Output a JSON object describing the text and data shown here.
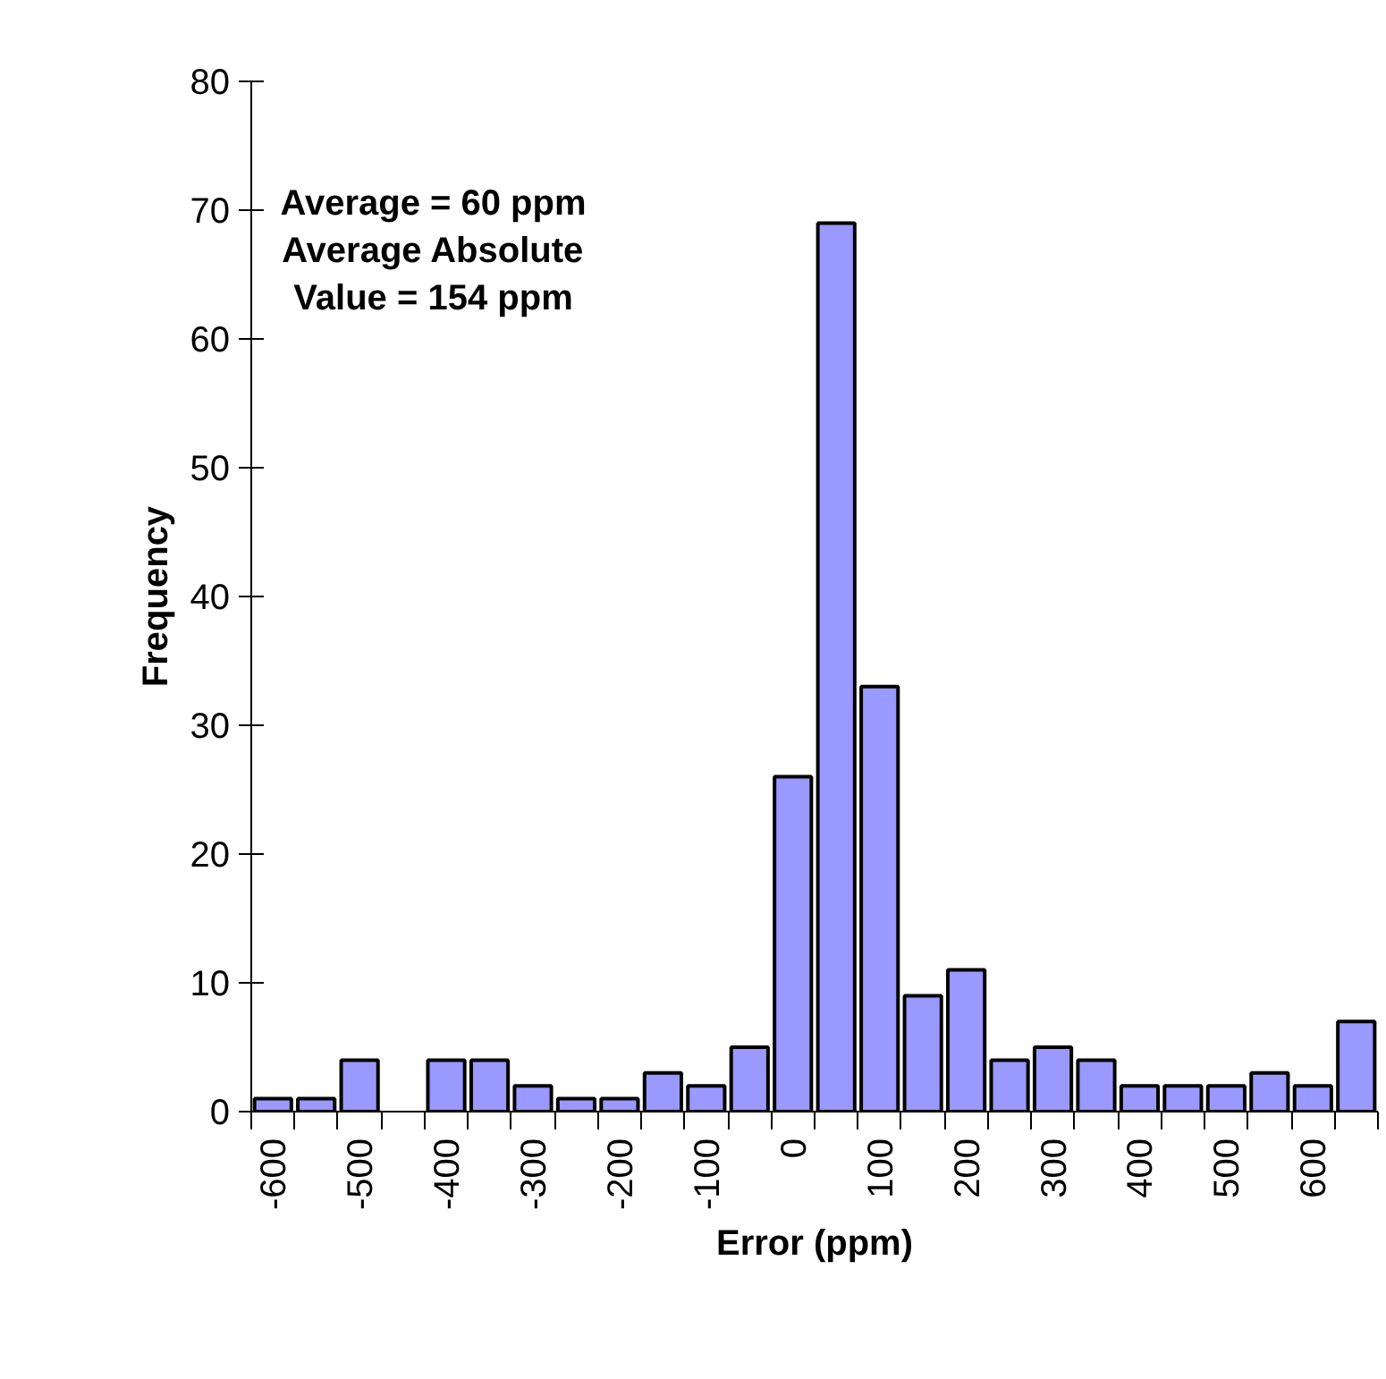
{
  "chart_data": {
    "type": "bar",
    "xlabel": "Error (ppm)",
    "ylabel": "Frequency",
    "categories": [
      "-600",
      null,
      "-500",
      null,
      "-400",
      null,
      "-300",
      null,
      "-200",
      null,
      "-100",
      null,
      "0",
      null,
      "100",
      null,
      "200",
      null,
      "300",
      null,
      "400",
      null,
      "500",
      null,
      "600",
      null
    ],
    "values": [
      1,
      1,
      4,
      null,
      4,
      4,
      2,
      1,
      1,
      3,
      2,
      5,
      26,
      69,
      33,
      9,
      11,
      4,
      5,
      4,
      2,
      2,
      2,
      3,
      2,
      7
    ],
    "color": "#9999ff",
    "ylim": [
      0,
      80
    ],
    "yticks": [
      0,
      10,
      20,
      30,
      40,
      50,
      60,
      70,
      80
    ],
    "grid": false,
    "annotations": [
      "Average = 60 ppm\nAverage Absolute\nValue = 154 ppm"
    ]
  }
}
